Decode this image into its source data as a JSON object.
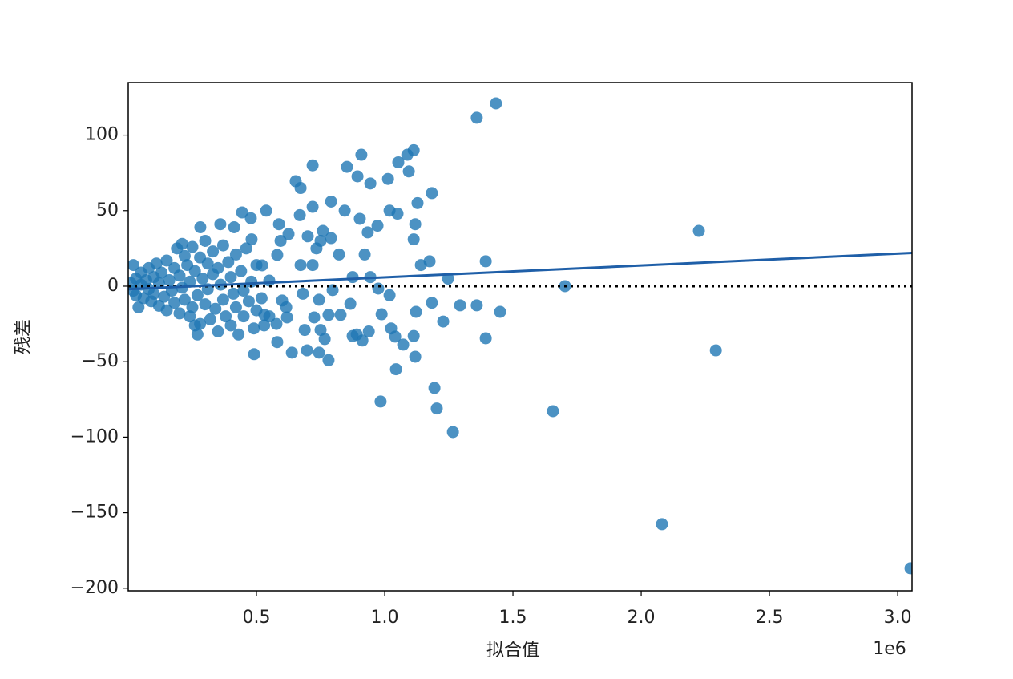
{
  "chart_data": {
    "type": "scatter",
    "xlabel": "拟合值",
    "ylabel": "残差",
    "x_offset_text": "1e6",
    "xlim": [
      0,
      3.056
    ],
    "ylim": [
      -201.7,
      134.8
    ],
    "xticks": [
      0.5,
      {
        "value": 1,
        "label": "1.0"
      },
      1.5,
      {
        "value": 2,
        "label": "2.0"
      },
      2.5,
      {
        "value": 3,
        "label": "3.0"
      }
    ],
    "yticks": [
      {
        "value": -200,
        "label": "−200"
      },
      {
        "value": -150,
        "label": "−150"
      },
      {
        "value": -100,
        "label": "−100"
      },
      {
        "value": -50,
        "label": "−50"
      },
      0,
      50,
      100
    ],
    "grid": false,
    "points": {
      "color": "#1f77b4",
      "x": [
        1.359,
        1.434,
        0.719,
        0.653,
        0.672,
        0.909,
        0.853,
        0.894,
        0.944,
        1.013,
        1.113,
        1.088,
        1.053,
        1.094,
        1.184,
        1.128,
        1.019,
        1.05,
        1.119,
        1.113,
        0.791,
        0.844,
        0.719,
        0.669,
        0.903,
        0.934,
        0.972,
        0.922,
        0.822,
        1.175,
        1.141,
        1.394,
        1.247,
        1.703,
        2.225,
        2.291,
        1.656,
        2.081,
        3.05,
        1.266,
        1.203,
        1.194,
        0.984,
        1.044,
        1.119,
        1.072,
        1.041,
        1.025,
        1.113,
        1.394,
        1.228,
        1.122,
        1.184,
        1.294,
        1.359,
        1.45,
        0.938,
        0.891,
        0.913,
        0.875,
        0.781,
        0.744,
        0.697,
        0.638,
        0.581,
        0.491,
        0.766,
        0.688,
        0.75,
        0.725,
        0.781,
        0.828,
        0.866,
        0.975,
        1.019,
        0.988,
        0.797,
        0.875,
        0.944,
        0.744,
        0.681,
        0.6,
        0.616,
        0.619,
        0.578,
        0.531,
        0.55,
        0.522,
        0.594,
        0.581,
        0.588,
        0.538,
        0.625,
        0.672,
        0.719,
        0.734,
        0.759,
        0.791,
        0.7,
        0.75,
        0.444,
        0.478,
        0.413,
        0.359,
        0.281,
        0.481,
        0.01,
        0.02,
        0.03,
        0.03,
        0.05,
        0.05,
        0.06,
        0.07,
        0.08,
        0.08,
        0.09,
        0.1,
        0.1,
        0.11,
        0.12,
        0.12,
        0.13,
        0.14,
        0.15,
        0.15,
        0.16,
        0.17,
        0.18,
        0.18,
        0.19,
        0.2,
        0.2,
        0.21,
        0.22,
        0.22,
        0.23,
        0.24,
        0.24,
        0.25,
        0.25,
        0.26,
        0.27,
        0.28,
        0.28,
        0.29,
        0.3,
        0.3,
        0.31,
        0.31,
        0.32,
        0.33,
        0.33,
        0.34,
        0.35,
        0.35,
        0.36,
        0.37,
        0.37,
        0.38,
        0.39,
        0.4,
        0.4,
        0.41,
        0.42,
        0.42,
        0.43,
        0.44,
        0.45,
        0.45,
        0.46,
        0.47,
        0.48,
        0.49,
        0.5,
        0.5,
        0.52,
        0.53,
        0.55,
        0.02,
        0.04,
        0.26,
        0.27,
        0.21
      ],
      "values": [
        111.5,
        121,
        80,
        69.5,
        65,
        87,
        79,
        72.7,
        68,
        71,
        90,
        87,
        82,
        76,
        61.6,
        55,
        50,
        48,
        41,
        31,
        56,
        50,
        52.5,
        47,
        44.6,
        35.6,
        40,
        21,
        21,
        16.5,
        14,
        16.5,
        5,
        0,
        36.6,
        -42.5,
        -82.8,
        -157.6,
        -186.8,
        -96.6,
        -81,
        -67.4,
        -76.4,
        -55,
        -46.7,
        -38.7,
        -33.4,
        -28,
        -33,
        -34.5,
        -23.4,
        -17,
        -11,
        -12.7,
        -12.7,
        -17,
        -30,
        -32,
        -36,
        -33,
        -49,
        -44,
        -42.5,
        -44,
        -37,
        -45,
        -35,
        -29,
        -29,
        -20.7,
        -19,
        -19,
        -11.7,
        -1.6,
        -6,
        -18.6,
        -2.6,
        6,
        6,
        -9,
        -5,
        -9.5,
        -14,
        -20.7,
        -25,
        -19,
        3.7,
        13.8,
        30,
        20.7,
        41,
        50,
        34.5,
        14,
        14,
        25,
        36.6,
        31.8,
        33,
        30,
        48.8,
        45,
        39,
        41,
        39,
        31,
        2,
        -3,
        5,
        -6,
        1,
        9,
        -8,
        4,
        -2,
        12,
        -10,
        6,
        -5,
        15,
        -13,
        2,
        9,
        -7,
        17,
        -16,
        4,
        -3,
        12,
        -11,
        25,
        -18,
        7,
        -1,
        20,
        -9,
        14,
        -20,
        3,
        26,
        -14,
        10,
        -6,
        19,
        -25,
        5,
        30,
        -12,
        15,
        -2,
        -22,
        23,
        8,
        -15,
        -30,
        12,
        1,
        -9,
        27,
        -20,
        16,
        -26,
        6,
        -5,
        21,
        -14,
        -32,
        10,
        -3,
        -20,
        25,
        -10,
        3,
        -28,
        14,
        -16,
        -8,
        -26,
        -20,
        14,
        -14,
        -26,
        -32,
        28
      ]
    },
    "fit_line": {
      "color": "#1f5fa8",
      "x": [
        0,
        3.056
      ],
      "values": [
        -2,
        22
      ]
    },
    "zero_line": {
      "value": 0,
      "color": "#000000",
      "style": "dotted"
    }
  }
}
